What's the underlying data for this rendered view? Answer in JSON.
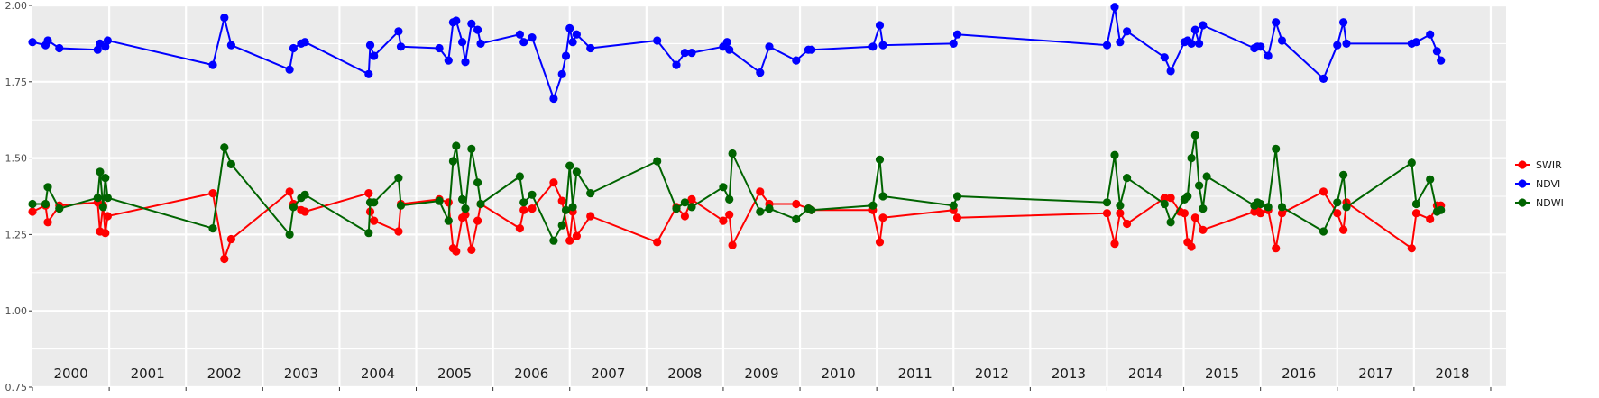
{
  "chart_data": {
    "type": "line",
    "title": "",
    "xlabel": "",
    "ylabel": "",
    "ylim": [
      0.75,
      2.0
    ],
    "xlim": [
      1999.5,
      2018.7
    ],
    "y_ticks": [
      "0.75",
      "1.00",
      "1.25",
      "1.50",
      "1.75",
      "2.00"
    ],
    "y_tick_values": [
      0.75,
      1.0,
      1.25,
      1.5,
      1.75,
      2.0
    ],
    "year_bands": [
      "2000",
      "2001",
      "2002",
      "2003",
      "2004",
      "2005",
      "2006",
      "2007",
      "2008",
      "2009",
      "2010",
      "2011",
      "2012",
      "2013",
      "2014",
      "2015",
      "2016",
      "2017",
      "2018"
    ],
    "grid": true,
    "legend_position": "right",
    "colors": {
      "panel": "#ebebeb",
      "grid": "#ffffff",
      "SWIR": "#ff0000",
      "NDVI": "#0000ff",
      "NDWI": "#006400"
    },
    "series": [
      {
        "name": "SWIR",
        "points": [
          [
            1999.5,
            1.325
          ],
          [
            1999.67,
            1.345
          ],
          [
            1999.7,
            1.29
          ],
          [
            1999.85,
            1.345
          ],
          [
            2000.35,
            1.355
          ],
          [
            2000.38,
            1.26
          ],
          [
            2000.42,
            1.345
          ],
          [
            2000.45,
            1.255
          ],
          [
            2000.48,
            1.31
          ],
          [
            2001.85,
            1.385
          ],
          [
            2002.0,
            1.17
          ],
          [
            2002.09,
            1.235
          ],
          [
            2002.85,
            1.39
          ],
          [
            2002.9,
            1.35
          ],
          [
            2003.0,
            1.33
          ],
          [
            2003.05,
            1.325
          ],
          [
            2003.88,
            1.385
          ],
          [
            2003.9,
            1.325
          ],
          [
            2003.95,
            1.295
          ],
          [
            2004.27,
            1.26
          ],
          [
            2004.3,
            1.35
          ],
          [
            2004.8,
            1.365
          ],
          [
            2004.92,
            1.355
          ],
          [
            2004.98,
            1.205
          ],
          [
            2005.02,
            1.195
          ],
          [
            2005.1,
            1.305
          ],
          [
            2005.14,
            1.315
          ],
          [
            2005.22,
            1.2
          ],
          [
            2005.3,
            1.295
          ],
          [
            2005.34,
            1.35
          ],
          [
            2005.85,
            1.27
          ],
          [
            2005.9,
            1.33
          ],
          [
            2006.01,
            1.335
          ],
          [
            2006.29,
            1.42
          ],
          [
            2006.4,
            1.36
          ],
          [
            2006.5,
            1.23
          ],
          [
            2006.54,
            1.325
          ],
          [
            2006.59,
            1.245
          ],
          [
            2006.77,
            1.31
          ],
          [
            2007.64,
            1.225
          ],
          [
            2007.89,
            1.34
          ],
          [
            2008.0,
            1.31
          ],
          [
            2008.09,
            1.365
          ],
          [
            2008.5,
            1.295
          ],
          [
            2008.58,
            1.315
          ],
          [
            2008.62,
            1.215
          ],
          [
            2008.98,
            1.39
          ],
          [
            2009.1,
            1.35
          ],
          [
            2009.45,
            1.35
          ],
          [
            2009.61,
            1.335
          ],
          [
            2009.65,
            1.33
          ],
          [
            2010.45,
            1.33
          ],
          [
            2010.54,
            1.225
          ],
          [
            2010.58,
            1.305
          ],
          [
            2011.5,
            1.33
          ],
          [
            2011.55,
            1.305
          ],
          [
            2013.5,
            1.32
          ],
          [
            2013.6,
            1.22
          ],
          [
            2013.67,
            1.32
          ],
          [
            2013.76,
            1.285
          ],
          [
            2014.25,
            1.37
          ],
          [
            2014.33,
            1.37
          ],
          [
            2014.45,
            1.325
          ],
          [
            2014.51,
            1.32
          ],
          [
            2014.55,
            1.225
          ],
          [
            2014.6,
            1.21
          ],
          [
            2014.65,
            1.305
          ],
          [
            2014.75,
            1.265
          ],
          [
            2015.42,
            1.325
          ],
          [
            2015.46,
            1.33
          ],
          [
            2015.5,
            1.32
          ],
          [
            2015.6,
            1.33
          ],
          [
            2015.7,
            1.205
          ],
          [
            2015.78,
            1.32
          ],
          [
            2016.32,
            1.39
          ],
          [
            2016.5,
            1.32
          ],
          [
            2016.58,
            1.265
          ],
          [
            2016.62,
            1.355
          ],
          [
            2017.47,
            1.205
          ],
          [
            2017.53,
            1.32
          ],
          [
            2017.71,
            1.3
          ],
          [
            2017.8,
            1.345
          ],
          [
            2017.85,
            1.345
          ]
        ]
      },
      {
        "name": "NDVI",
        "points": [
          [
            1999.5,
            1.88
          ],
          [
            1999.67,
            1.87
          ],
          [
            1999.7,
            1.885
          ],
          [
            1999.85,
            1.86
          ],
          [
            2000.35,
            1.855
          ],
          [
            2000.38,
            1.875
          ],
          [
            2000.45,
            1.865
          ],
          [
            2000.48,
            1.885
          ],
          [
            2001.85,
            1.805
          ],
          [
            2002.0,
            1.96
          ],
          [
            2002.09,
            1.87
          ],
          [
            2002.85,
            1.79
          ],
          [
            2002.9,
            1.86
          ],
          [
            2003.0,
            1.875
          ],
          [
            2003.05,
            1.88
          ],
          [
            2003.88,
            1.775
          ],
          [
            2003.9,
            1.87
          ],
          [
            2003.95,
            1.835
          ],
          [
            2004.27,
            1.915
          ],
          [
            2004.3,
            1.865
          ],
          [
            2004.8,
            1.86
          ],
          [
            2004.92,
            1.82
          ],
          [
            2004.98,
            1.945
          ],
          [
            2005.02,
            1.95
          ],
          [
            2005.1,
            1.88
          ],
          [
            2005.14,
            1.815
          ],
          [
            2005.22,
            1.94
          ],
          [
            2005.3,
            1.92
          ],
          [
            2005.34,
            1.875
          ],
          [
            2005.85,
            1.905
          ],
          [
            2005.9,
            1.88
          ],
          [
            2006.01,
            1.895
          ],
          [
            2006.29,
            1.695
          ],
          [
            2006.4,
            1.775
          ],
          [
            2006.45,
            1.835
          ],
          [
            2006.5,
            1.925
          ],
          [
            2006.54,
            1.88
          ],
          [
            2006.59,
            1.905
          ],
          [
            2006.77,
            1.86
          ],
          [
            2007.64,
            1.885
          ],
          [
            2007.89,
            1.805
          ],
          [
            2008.0,
            1.845
          ],
          [
            2008.09,
            1.845
          ],
          [
            2008.5,
            1.865
          ],
          [
            2008.55,
            1.88
          ],
          [
            2008.58,
            1.855
          ],
          [
            2008.98,
            1.78
          ],
          [
            2009.1,
            1.865
          ],
          [
            2009.45,
            1.82
          ],
          [
            2009.61,
            1.855
          ],
          [
            2009.65,
            1.855
          ],
          [
            2010.45,
            1.865
          ],
          [
            2010.54,
            1.935
          ],
          [
            2010.58,
            1.87
          ],
          [
            2011.5,
            1.875
          ],
          [
            2011.55,
            1.905
          ],
          [
            2013.5,
            1.87
          ],
          [
            2013.6,
            1.995
          ],
          [
            2013.67,
            1.88
          ],
          [
            2013.76,
            1.915
          ],
          [
            2014.25,
            1.83
          ],
          [
            2014.33,
            1.785
          ],
          [
            2014.51,
            1.88
          ],
          [
            2014.55,
            1.885
          ],
          [
            2014.6,
            1.875
          ],
          [
            2014.65,
            1.92
          ],
          [
            2014.7,
            1.875
          ],
          [
            2014.75,
            1.935
          ],
          [
            2015.42,
            1.86
          ],
          [
            2015.46,
            1.865
          ],
          [
            2015.5,
            1.865
          ],
          [
            2015.6,
            1.835
          ],
          [
            2015.7,
            1.945
          ],
          [
            2015.78,
            1.885
          ],
          [
            2016.32,
            1.76
          ],
          [
            2016.5,
            1.87
          ],
          [
            2016.58,
            1.945
          ],
          [
            2016.62,
            1.875
          ],
          [
            2017.47,
            1.875
          ],
          [
            2017.53,
            1.88
          ],
          [
            2017.71,
            1.905
          ],
          [
            2017.8,
            1.85
          ],
          [
            2017.85,
            1.82
          ]
        ]
      },
      {
        "name": "NDWI",
        "points": [
          [
            1999.5,
            1.35
          ],
          [
            1999.67,
            1.35
          ],
          [
            1999.7,
            1.405
          ],
          [
            1999.85,
            1.335
          ],
          [
            2000.35,
            1.37
          ],
          [
            2000.38,
            1.455
          ],
          [
            2000.42,
            1.34
          ],
          [
            2000.45,
            1.435
          ],
          [
            2000.48,
            1.37
          ],
          [
            2001.85,
            1.27
          ],
          [
            2002.0,
            1.535
          ],
          [
            2002.09,
            1.48
          ],
          [
            2002.85,
            1.25
          ],
          [
            2002.9,
            1.34
          ],
          [
            2003.0,
            1.37
          ],
          [
            2003.05,
            1.38
          ],
          [
            2003.88,
            1.255
          ],
          [
            2003.9,
            1.355
          ],
          [
            2003.95,
            1.355
          ],
          [
            2004.27,
            1.435
          ],
          [
            2004.3,
            1.345
          ],
          [
            2004.8,
            1.36
          ],
          [
            2004.92,
            1.295
          ],
          [
            2004.98,
            1.49
          ],
          [
            2005.02,
            1.54
          ],
          [
            2005.1,
            1.365
          ],
          [
            2005.14,
            1.335
          ],
          [
            2005.22,
            1.53
          ],
          [
            2005.3,
            1.42
          ],
          [
            2005.34,
            1.35
          ],
          [
            2005.85,
            1.44
          ],
          [
            2005.9,
            1.355
          ],
          [
            2006.01,
            1.38
          ],
          [
            2006.29,
            1.23
          ],
          [
            2006.4,
            1.28
          ],
          [
            2006.45,
            1.33
          ],
          [
            2006.5,
            1.475
          ],
          [
            2006.54,
            1.34
          ],
          [
            2006.59,
            1.455
          ],
          [
            2006.77,
            1.385
          ],
          [
            2007.64,
            1.49
          ],
          [
            2007.89,
            1.335
          ],
          [
            2008.0,
            1.355
          ],
          [
            2008.09,
            1.34
          ],
          [
            2008.5,
            1.405
          ],
          [
            2008.58,
            1.365
          ],
          [
            2008.62,
            1.515
          ],
          [
            2008.98,
            1.325
          ],
          [
            2009.1,
            1.335
          ],
          [
            2009.45,
            1.3
          ],
          [
            2009.61,
            1.335
          ],
          [
            2009.65,
            1.33
          ],
          [
            2010.45,
            1.345
          ],
          [
            2010.54,
            1.495
          ],
          [
            2010.58,
            1.375
          ],
          [
            2011.5,
            1.345
          ],
          [
            2011.55,
            1.375
          ],
          [
            2013.5,
            1.355
          ],
          [
            2013.6,
            1.51
          ],
          [
            2013.67,
            1.345
          ],
          [
            2013.76,
            1.435
          ],
          [
            2014.25,
            1.35
          ],
          [
            2014.33,
            1.29
          ],
          [
            2014.51,
            1.365
          ],
          [
            2014.55,
            1.375
          ],
          [
            2014.6,
            1.5
          ],
          [
            2014.65,
            1.575
          ],
          [
            2014.7,
            1.41
          ],
          [
            2014.75,
            1.335
          ],
          [
            2014.8,
            1.44
          ],
          [
            2015.42,
            1.345
          ],
          [
            2015.46,
            1.355
          ],
          [
            2015.5,
            1.35
          ],
          [
            2015.6,
            1.34
          ],
          [
            2015.7,
            1.53
          ],
          [
            2015.78,
            1.34
          ],
          [
            2016.32,
            1.26
          ],
          [
            2016.5,
            1.355
          ],
          [
            2016.58,
            1.445
          ],
          [
            2016.62,
            1.34
          ],
          [
            2017.47,
            1.485
          ],
          [
            2017.53,
            1.35
          ],
          [
            2017.71,
            1.43
          ],
          [
            2017.8,
            1.325
          ],
          [
            2017.85,
            1.33
          ]
        ]
      }
    ]
  }
}
